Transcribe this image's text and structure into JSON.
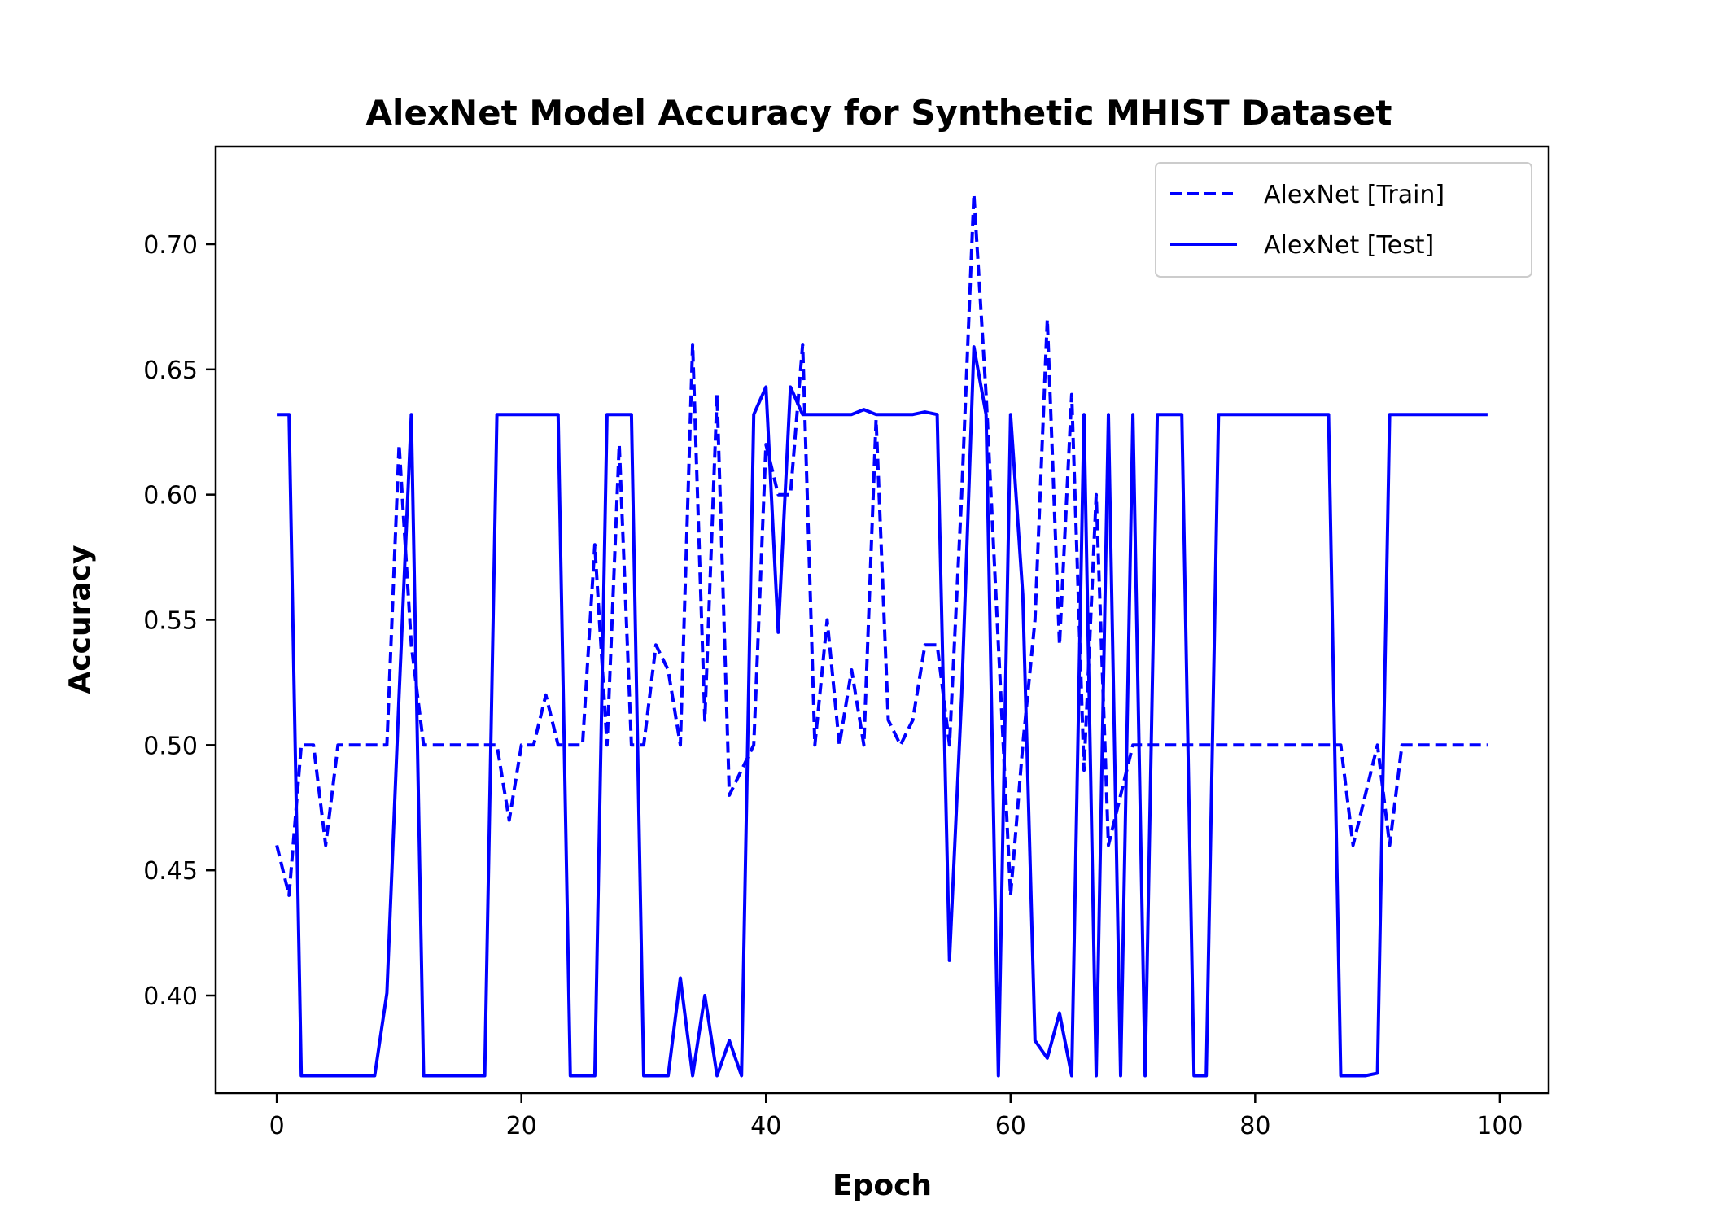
{
  "colors": {
    "series": "#0000ff",
    "axes": "#000000",
    "background": "#ffffff"
  },
  "chart_data": {
    "type": "line",
    "title": "AlexNet Model Accuracy for Synthetic MHIST Dataset",
    "xlabel": "Epoch",
    "ylabel": "Accuracy",
    "xlim": [
      -5,
      104
    ],
    "ylim": [
      0.361,
      0.739
    ],
    "xticks": [
      0,
      20,
      40,
      60,
      80,
      100
    ],
    "yticks": [
      0.4,
      0.45,
      0.5,
      0.55,
      0.6,
      0.65,
      0.7
    ],
    "xtick_labels": [
      "0",
      "20",
      "40",
      "60",
      "80",
      "100"
    ],
    "ytick_labels": [
      "0.40",
      "0.45",
      "0.50",
      "0.55",
      "0.60",
      "0.65",
      "0.70"
    ],
    "grid": false,
    "legend_position": "top-right",
    "series": [
      {
        "name": "AlexNet [Train]",
        "style": "dashed",
        "color": "#0000ff",
        "x": [
          0,
          1,
          2,
          3,
          4,
          5,
          6,
          7,
          8,
          9,
          10,
          11,
          12,
          13,
          14,
          15,
          16,
          17,
          18,
          19,
          20,
          21,
          22,
          23,
          24,
          25,
          26,
          27,
          28,
          29,
          30,
          31,
          32,
          33,
          34,
          35,
          36,
          37,
          38,
          39,
          40,
          41,
          42,
          43,
          44,
          45,
          46,
          47,
          48,
          49,
          50,
          51,
          52,
          53,
          54,
          55,
          56,
          57,
          58,
          59,
          60,
          61,
          62,
          63,
          64,
          65,
          66,
          67,
          68,
          69,
          70,
          71,
          72,
          73,
          74,
          75,
          76,
          77,
          78,
          79,
          80,
          81,
          82,
          83,
          84,
          85,
          86,
          87,
          88,
          89,
          90,
          91,
          92,
          93,
          94,
          95,
          96,
          97,
          98,
          99
        ],
        "values": [
          0.46,
          0.44,
          0.5,
          0.5,
          0.46,
          0.5,
          0.5,
          0.5,
          0.5,
          0.5,
          0.62,
          0.54,
          0.5,
          0.5,
          0.5,
          0.5,
          0.5,
          0.5,
          0.5,
          0.47,
          0.5,
          0.5,
          0.52,
          0.5,
          0.5,
          0.5,
          0.58,
          0.5,
          0.62,
          0.5,
          0.5,
          0.54,
          0.53,
          0.5,
          0.66,
          0.51,
          0.64,
          0.48,
          0.49,
          0.5,
          0.62,
          0.6,
          0.6,
          0.66,
          0.5,
          0.55,
          0.5,
          0.53,
          0.5,
          0.63,
          0.51,
          0.5,
          0.51,
          0.54,
          0.54,
          0.5,
          0.6,
          0.72,
          0.64,
          0.54,
          0.44,
          0.5,
          0.55,
          0.67,
          0.54,
          0.64,
          0.49,
          0.6,
          0.46,
          0.48,
          0.5,
          0.5,
          0.5,
          0.5,
          0.5,
          0.5,
          0.5,
          0.5,
          0.5,
          0.5,
          0.5,
          0.5,
          0.5,
          0.5,
          0.5,
          0.5,
          0.5,
          0.5,
          0.46,
          0.48,
          0.5,
          0.46,
          0.5,
          0.5,
          0.5,
          0.5,
          0.5,
          0.5,
          0.5,
          0.5
        ]
      },
      {
        "name": "AlexNet [Test]",
        "style": "solid",
        "color": "#0000ff",
        "x": [
          0,
          1,
          2,
          3,
          4,
          5,
          6,
          7,
          8,
          9,
          10,
          11,
          12,
          13,
          14,
          15,
          16,
          17,
          18,
          19,
          20,
          21,
          22,
          23,
          24,
          25,
          26,
          27,
          28,
          29,
          30,
          31,
          32,
          33,
          34,
          35,
          36,
          37,
          38,
          39,
          40,
          41,
          42,
          43,
          44,
          45,
          46,
          47,
          48,
          49,
          50,
          51,
          52,
          53,
          54,
          55,
          56,
          57,
          58,
          59,
          60,
          61,
          62,
          63,
          64,
          65,
          66,
          67,
          68,
          69,
          70,
          71,
          72,
          73,
          74,
          75,
          76,
          77,
          78,
          79,
          80,
          81,
          82,
          83,
          84,
          85,
          86,
          87,
          88,
          89,
          90,
          91,
          92,
          93,
          94,
          95,
          96,
          97,
          98,
          99
        ],
        "values": [
          0.632,
          0.632,
          0.368,
          0.368,
          0.368,
          0.368,
          0.368,
          0.368,
          0.368,
          0.401,
          0.52,
          0.632,
          0.368,
          0.368,
          0.368,
          0.368,
          0.368,
          0.368,
          0.632,
          0.632,
          0.632,
          0.632,
          0.632,
          0.632,
          0.368,
          0.368,
          0.368,
          0.632,
          0.632,
          0.632,
          0.368,
          0.368,
          0.368,
          0.407,
          0.368,
          0.4,
          0.368,
          0.382,
          0.368,
          0.632,
          0.643,
          0.545,
          0.643,
          0.632,
          0.632,
          0.632,
          0.632,
          0.632,
          0.634,
          0.632,
          0.632,
          0.632,
          0.632,
          0.633,
          0.632,
          0.414,
          0.52,
          0.659,
          0.632,
          0.368,
          0.632,
          0.56,
          0.382,
          0.375,
          0.393,
          0.368,
          0.632,
          0.368,
          0.632,
          0.368,
          0.632,
          0.368,
          0.632,
          0.632,
          0.632,
          0.368,
          0.368,
          0.632,
          0.632,
          0.632,
          0.632,
          0.632,
          0.632,
          0.632,
          0.632,
          0.632,
          0.632,
          0.368,
          0.368,
          0.368,
          0.369,
          0.632,
          0.632,
          0.632,
          0.632,
          0.632,
          0.632,
          0.632,
          0.632,
          0.632
        ]
      }
    ]
  }
}
